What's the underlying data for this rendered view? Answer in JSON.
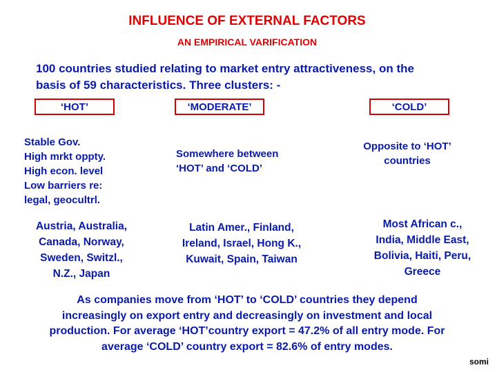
{
  "header": {
    "title": "INFLUENCE OF EXTERNAL FACTORS",
    "subtitle": "AN EMPIRICAL VARIFICATION"
  },
  "intro": [
    "100 countries studied relating to market entry attractiveness, on the",
    "basis of 59 characteristics. Three clusters: -"
  ],
  "clusters": [
    {
      "header": "‘HOT’",
      "features": [
        "Stable Gov.",
        "High mrkt oppty.",
        "High econ. level",
        "Low barriers re:",
        "legal, geocultrl."
      ],
      "countries": [
        "Austria, Australia,",
        "Canada, Norway,",
        "Sweden, Switzl.,",
        "N.Z., Japan"
      ]
    },
    {
      "header": "‘MODERATE’",
      "features": [
        "Somewhere between",
        "‘HOT’ and ‘COLD’"
      ],
      "countries": [
        "Latin Amer., Finland,",
        "Ireland, Israel, Hong K.,",
        "Kuwait, Spain, Taiwan"
      ]
    },
    {
      "header": "‘COLD’",
      "features": [
        "Opposite to ‘HOT’",
        "countries"
      ],
      "countries": [
        "Most African c.,",
        "India, Middle East,",
        "Bolivia, Haiti, Peru,",
        "Greece"
      ]
    }
  ],
  "conclusion": [
    "As companies move from ‘HOT’ to ‘COLD’ countries they depend",
    "increasingly on export entry and decreasingly on investment and local",
    "production. For average ‘HOT’country export = 47.2% of all entry mode. For",
    "average ‘COLD’ country export = 82.6% of entry modes."
  ],
  "footer": "somi"
}
